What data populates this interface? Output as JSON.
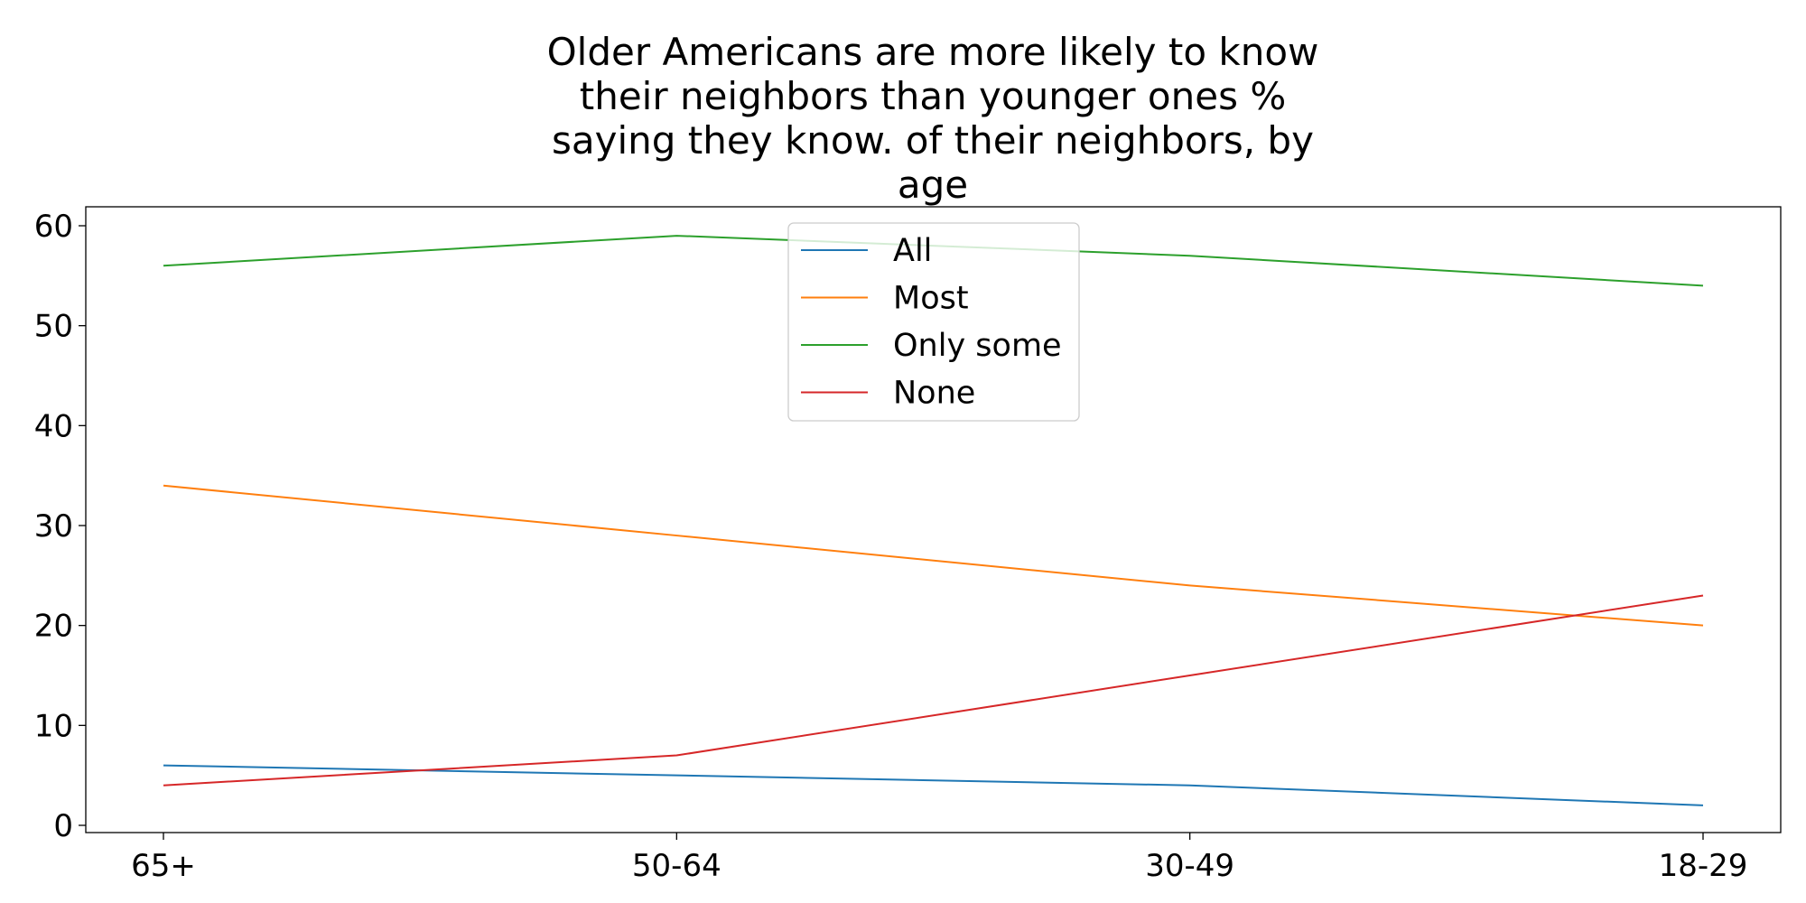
{
  "chart_data": {
    "type": "line",
    "title": "Older Americans are more likely to know their neighbors than younger ones % saying they know. of their neighbors, by age",
    "title_lines": [
      "Older Americans are more likely to know",
      "their neighbors than younger ones %",
      "saying they know. of their neighbors, by",
      "age"
    ],
    "categories": [
      "65+",
      "50-64",
      "30-49",
      "18-29"
    ],
    "series": [
      {
        "name": "All",
        "color": "#1f77b4",
        "values": [
          6,
          5,
          4,
          2
        ]
      },
      {
        "name": "Most",
        "color": "#ff7f0e",
        "values": [
          34,
          29,
          24,
          20
        ]
      },
      {
        "name": "Only some",
        "color": "#2ca02c",
        "values": [
          56,
          59,
          57,
          54
        ]
      },
      {
        "name": "None",
        "color": "#d62728",
        "values": [
          4,
          7,
          15,
          23
        ]
      }
    ],
    "yticks": [
      "0",
      "10",
      "20",
      "30",
      "40",
      "50",
      "60"
    ],
    "ylim": [
      -0.75,
      62
    ],
    "xlabel": "",
    "ylabel": "",
    "grid": false,
    "legend_position": "upper-center"
  }
}
